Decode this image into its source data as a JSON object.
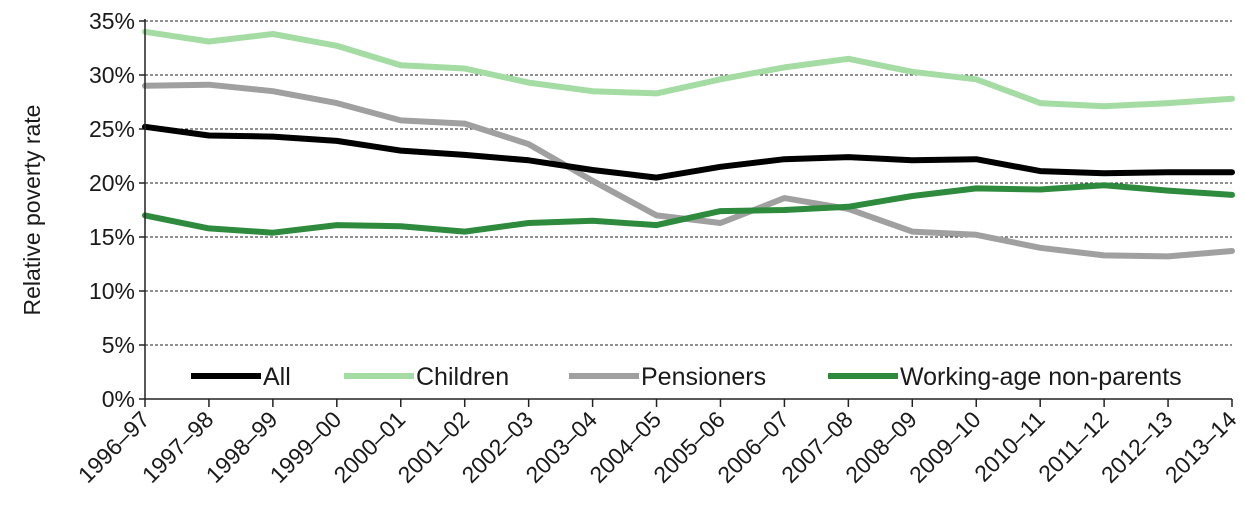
{
  "chart_data": {
    "type": "line",
    "title": "",
    "xlabel": "",
    "ylabel": "Relative poverty rate",
    "ylim": [
      0,
      35
    ],
    "yticks": [
      0,
      5,
      10,
      15,
      20,
      25,
      30,
      35
    ],
    "ytick_labels": [
      "0%",
      "5%",
      "10%",
      "15%",
      "20%",
      "25%",
      "30%",
      "35%"
    ],
    "grid": "horizontal dashed",
    "legend_position": "bottom, inside plot",
    "categories": [
      "1996–97",
      "1997–98",
      "1998–99",
      "1999–00",
      "2000–01",
      "2001–02",
      "2002–03",
      "2003–04",
      "2004–05",
      "2005–06",
      "2006–07",
      "2007–08",
      "2008–09",
      "2009–10",
      "2010–11",
      "2011–12",
      "2012–13",
      "2013–14"
    ],
    "series": [
      {
        "name": "All",
        "color": "#000000",
        "values": [
          25.2,
          24.4,
          24.3,
          23.9,
          23.0,
          22.6,
          22.1,
          21.2,
          20.5,
          21.5,
          22.2,
          22.4,
          22.1,
          22.2,
          21.1,
          20.9,
          21.0,
          21.0
        ]
      },
      {
        "name": "Children",
        "color": "#a4dca4",
        "values": [
          34.0,
          33.1,
          33.8,
          32.7,
          30.9,
          30.6,
          29.3,
          28.5,
          28.3,
          29.6,
          30.7,
          31.5,
          30.3,
          29.6,
          27.4,
          27.1,
          27.4,
          27.8
        ]
      },
      {
        "name": "Pensioners",
        "color": "#a0a0a0",
        "values": [
          29.0,
          29.1,
          28.5,
          27.4,
          25.8,
          25.5,
          23.6,
          20.2,
          17.0,
          16.3,
          18.6,
          17.6,
          15.5,
          15.2,
          14.0,
          13.3,
          13.2,
          13.7
        ]
      },
      {
        "name": "Working-age non-parents",
        "color": "#2e8b3e",
        "values": [
          17.0,
          15.8,
          15.4,
          16.1,
          16.0,
          15.5,
          16.3,
          16.5,
          16.1,
          17.4,
          17.5,
          17.8,
          18.8,
          19.5,
          19.4,
          19.8,
          19.3,
          18.9
        ]
      }
    ]
  }
}
